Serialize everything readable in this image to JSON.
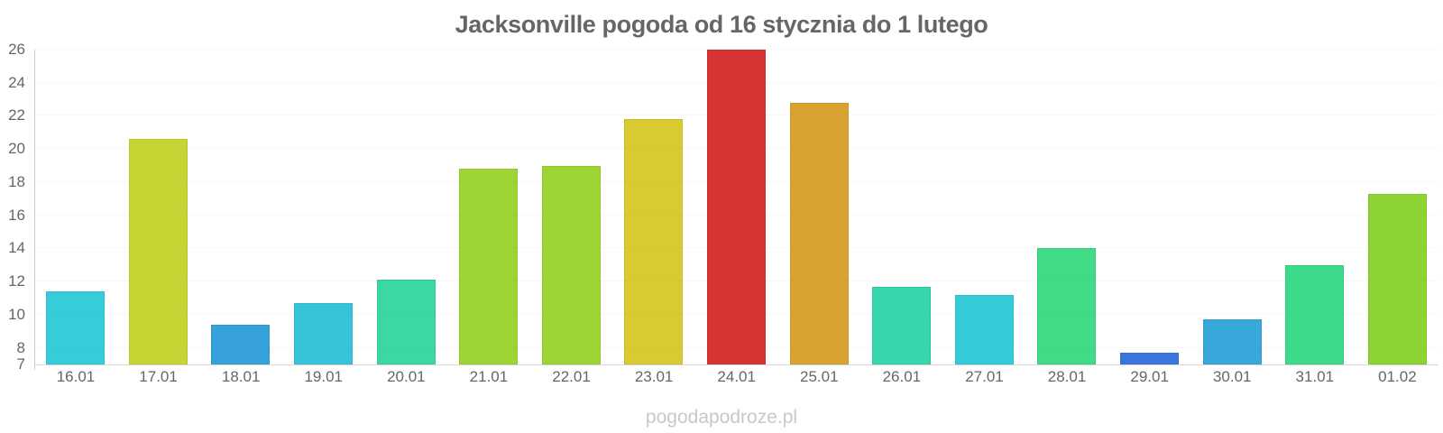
{
  "title": "Jacksonville pogoda od 16 stycznia do 1 lutego",
  "watermark": "pogodapodroze.pl",
  "theme": {
    "background": "#ffffff",
    "title_color": "#666666",
    "axis_label_color": "#666666",
    "axis_line_color": "#cccccc",
    "gridline_style": "dotted light gray",
    "watermark_color": "#c8c8c8"
  },
  "chart_data": {
    "type": "bar",
    "title": "Jacksonville pogoda od 16 stycznia do 1 lutego",
    "xlabel": "",
    "ylabel": "",
    "categories": [
      "16.01",
      "17.01",
      "18.01",
      "19.01",
      "20.01",
      "21.01",
      "22.01",
      "23.01",
      "24.01",
      "25.01",
      "26.01",
      "27.01",
      "28.01",
      "29.01",
      "30.01",
      "31.01",
      "01.02"
    ],
    "values": [
      11.4,
      20.6,
      9.4,
      10.7,
      12.1,
      18.8,
      19.0,
      21.8,
      26.0,
      22.8,
      11.7,
      11.2,
      14.0,
      7.7,
      9.7,
      13.0,
      17.3
    ],
    "bar_colors": [
      "#36ccd8",
      "#c6d534",
      "#37a1da",
      "#36c4d8",
      "#3bd8a4",
      "#9cd534",
      "#9dd534",
      "#d9ca31",
      "#d73534",
      "#daa331",
      "#37d6ae",
      "#36cbd9",
      "#40db84",
      "#3b76dc",
      "#38a8db",
      "#3eda8b",
      "#8cd334"
    ],
    "ylim": [
      7,
      26
    ],
    "yticks": [
      7,
      8,
      10,
      12,
      14,
      16,
      18,
      20,
      22,
      24,
      26
    ],
    "grid": "horizontal dotted",
    "legend": "none",
    "units": "°C (temperature, not labeled on chart)"
  }
}
